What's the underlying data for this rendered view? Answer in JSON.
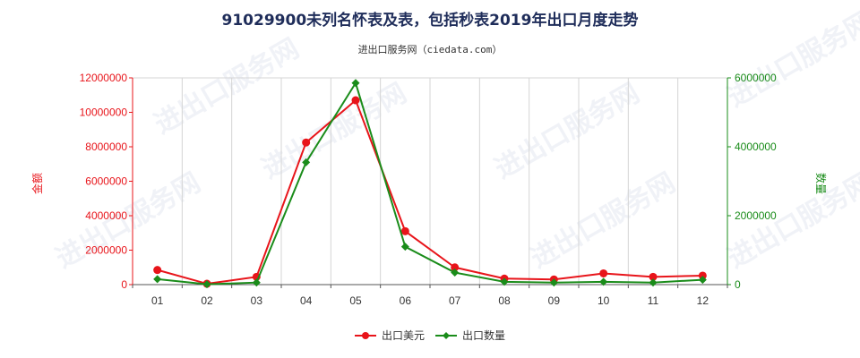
{
  "title": "91029900未列名怀表及表，包括秒表2019年出口月度走势",
  "subtitle": "进出口服务网（ciedata.com）",
  "watermark": "进出口服务网",
  "chart_data": {
    "type": "line",
    "categories": [
      "01",
      "02",
      "03",
      "04",
      "05",
      "06",
      "07",
      "08",
      "09",
      "10",
      "11",
      "12"
    ],
    "y_left": {
      "label": "金额",
      "range": [
        0,
        12000000
      ],
      "ticks": [
        "0",
        "2000000",
        "4000000",
        "6000000",
        "8000000",
        "10000000",
        "12000000"
      ],
      "color": "#e8141a"
    },
    "y_right": {
      "label": "数量",
      "range": [
        0,
        6000000
      ],
      "ticks": [
        "0",
        "2000000",
        "4000000",
        "6000000"
      ],
      "color": "#1a8c1a"
    },
    "grid": "vertical",
    "legend_position": "bottom",
    "series": [
      {
        "name": "出口美元",
        "axis": "left",
        "color": "#e8141a",
        "marker": "circle",
        "values": [
          850000,
          50000,
          450000,
          8250000,
          10700000,
          3100000,
          1000000,
          350000,
          300000,
          650000,
          450000,
          520000
        ]
      },
      {
        "name": "出口数量",
        "axis": "right",
        "color": "#1a8c1a",
        "marker": "diamond",
        "values": [
          160000,
          10000,
          60000,
          3550000,
          5850000,
          1100000,
          350000,
          80000,
          60000,
          80000,
          60000,
          140000
        ]
      }
    ]
  }
}
